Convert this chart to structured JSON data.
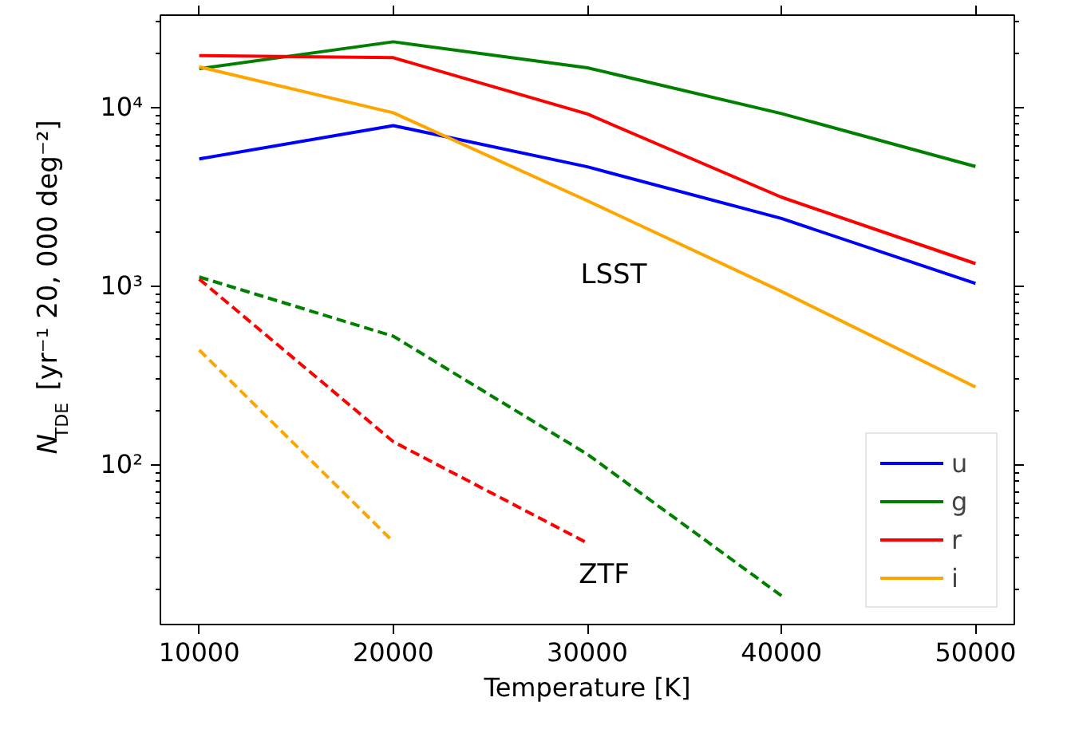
{
  "chart_data": {
    "type": "line",
    "xlabel": "Temperature [K]",
    "ylabel": "N$_{TDE}$ [yr⁻¹ 20, 000 deg⁻²]",
    "x": [
      10000,
      20000,
      30000,
      40000,
      50000
    ],
    "xlim": [
      8000,
      52000
    ],
    "xticks": [
      10000,
      20000,
      30000,
      40000,
      50000
    ],
    "ylim": [
      12.7,
      32700
    ],
    "yticks": [
      {
        "value": 100,
        "label": "10²"
      },
      {
        "value": 1000,
        "label": "10³"
      },
      {
        "value": 10000,
        "label": "10⁴"
      }
    ],
    "log": "y",
    "grid": false,
    "legend": "bottom right",
    "marker": "none",
    "series": [
      {
        "name": "u",
        "color": "#0000ff",
        "line_style": "solid",
        "values": [
          5130,
          7880,
          4630,
          2380,
          1030
        ]
      },
      {
        "name": "g",
        "color": "#008000",
        "line_style": "solid",
        "values": [
          16400,
          23200,
          16600,
          9200,
          4650
        ]
      },
      {
        "name": "r",
        "color": "#ff0000",
        "line_style": "solid",
        "values": [
          19400,
          18900,
          9150,
          3130,
          1330
        ]
      },
      {
        "name": "i",
        "color": "#ffa500",
        "line_style": "solid",
        "values": [
          16800,
          9290,
          2990,
          930,
          271
        ]
      },
      {
        "color": "#008000",
        "line_style": "dashed",
        "values": [
          1120,
          522,
          114,
          18.4,
          null
        ]
      },
      {
        "color": "#ff0000",
        "line_style": "dashed",
        "values": [
          1090,
          134,
          36.3,
          null,
          null
        ]
      },
      {
        "color": "#ffa500",
        "line_style": "dashed",
        "values": [
          437,
          36.9,
          null,
          null,
          null
        ]
      }
    ],
    "annotations": [
      "LSST",
      "ZTF"
    ]
  }
}
